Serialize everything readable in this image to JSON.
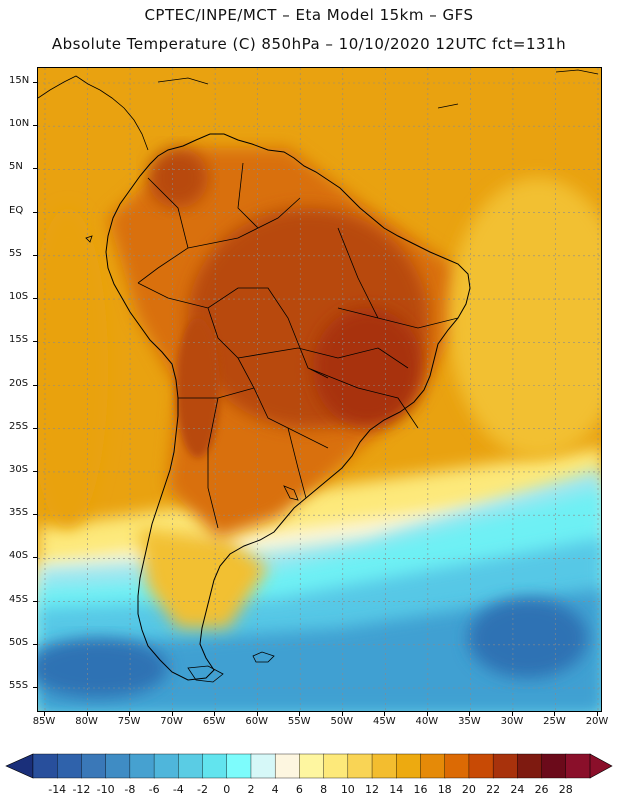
{
  "header": {
    "line1": "CPTEC/INPE/MCT –  Eta Model 15km – GFS",
    "line2": "Absolute Temperature (C) 850hPa – 10/10/2020 12UTC fct=131h"
  },
  "axes": {
    "lat_labels": [
      "15N",
      "10N",
      "5N",
      "EQ",
      "5S",
      "10S",
      "15S",
      "20S",
      "25S",
      "30S",
      "35S",
      "40S",
      "45S",
      "50S",
      "55S"
    ],
    "lon_labels": [
      "85W",
      "80W",
      "75W",
      "70W",
      "65W",
      "60W",
      "55W",
      "50W",
      "45W",
      "40W",
      "35W",
      "30W",
      "25W",
      "20W"
    ]
  },
  "colorbar": {
    "labels": [
      "-14",
      "-12",
      "-10",
      "-8",
      "-6",
      "-4",
      "-2",
      "0",
      "2",
      "4",
      "6",
      "8",
      "10",
      "12",
      "14",
      "16",
      "18",
      "20",
      "22",
      "24",
      "26",
      "28"
    ],
    "colors": [
      "#1f3d8a",
      "#284f9c",
      "#2f62ab",
      "#3a78b8",
      "#3f8cc4",
      "#46a1d0",
      "#4fb6db",
      "#5accE4",
      "#62e4ee",
      "#7dfcfc",
      "#d6f8f8",
      "#fdf6e0",
      "#fef6a0",
      "#fde97a",
      "#f9d455",
      "#f3bd2f",
      "#edaa10",
      "#e58a08",
      "#dc6a04",
      "#c84a05",
      "#a8320c",
      "#7e1a10",
      "#6b0a1a",
      "#8a0f2a"
    ],
    "left_arrow_color": "#1a2f7a",
    "right_arrow_color": "#8a0f2a"
  },
  "map_colors": {
    "warm_dark": "#b84a0a",
    "warm_mid": "#d9700a",
    "warm": "#e9a210",
    "yellow_orange": "#f2c030",
    "yellow": "#fde97a",
    "cream": "#fdf6d8",
    "cyan": "#6ef0f4",
    "light_blue": "#9ee6f0",
    "sky": "#56c8e6",
    "blue": "#3fa0d2",
    "dark_blue": "#2f72b4",
    "coast": "#000000"
  }
}
